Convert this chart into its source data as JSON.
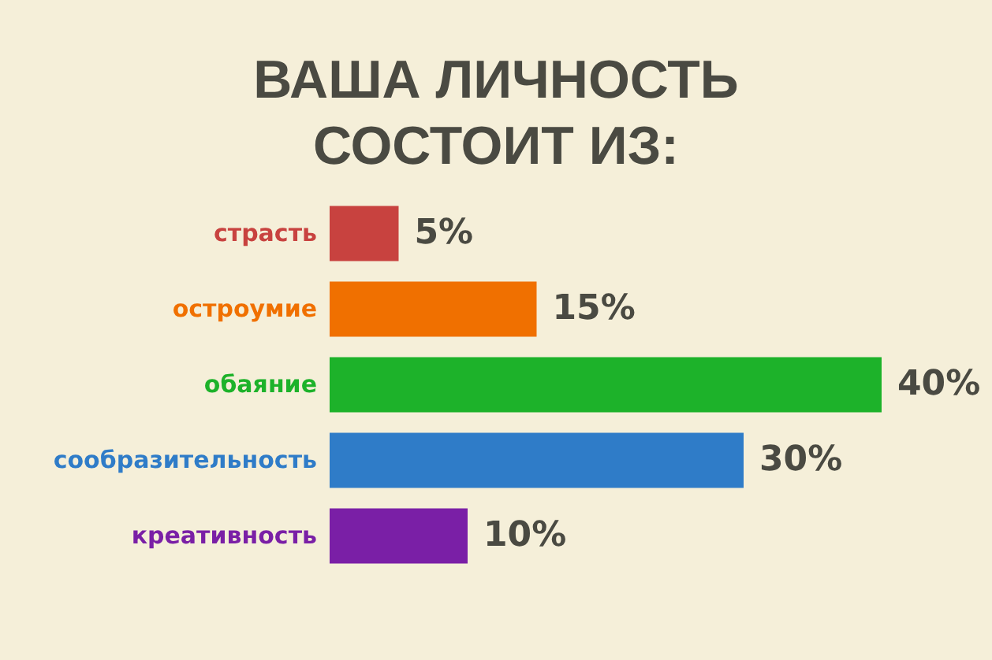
{
  "chart_data": {
    "type": "bar",
    "orientation": "horizontal",
    "title": "ВАША ЛИЧНОСТЬ СОСТОИТ ИЗ:",
    "categories": [
      "страсть",
      "остроумие",
      "обаяние",
      "сообразительность",
      "креативность"
    ],
    "values": [
      5,
      15,
      40,
      30,
      10
    ],
    "colors": [
      "#c8423f",
      "#f07000",
      "#1db22a",
      "#2f7cc8",
      "#7a1fa6"
    ],
    "value_labels": [
      "5%",
      "15%",
      "40%",
      "30%",
      "10%"
    ]
  }
}
